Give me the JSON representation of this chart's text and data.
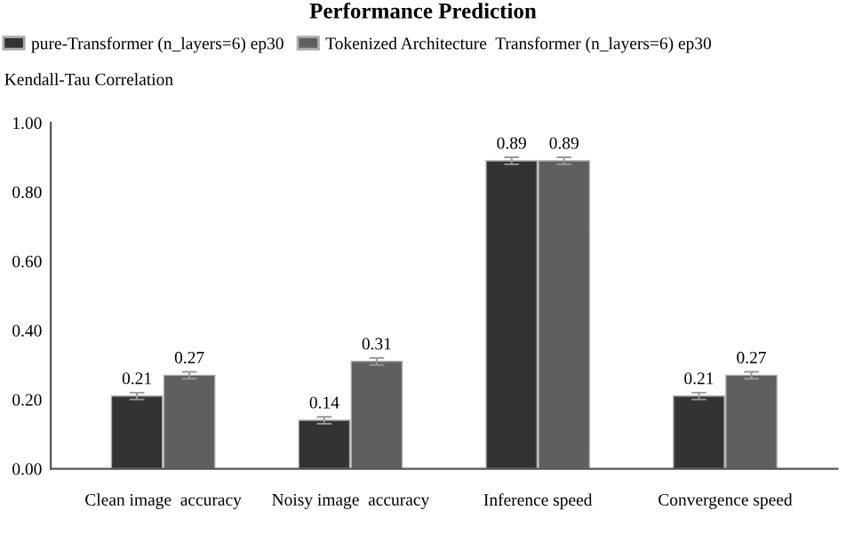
{
  "chart_data": {
    "type": "bar",
    "title": "Performance Prediction",
    "ylabel": "Kendall-Tau Correlation",
    "categories": [
      "Clean image  accuracy",
      "Noisy image  accuracy",
      "Inference speed",
      "Convergence speed"
    ],
    "series": [
      {
        "name": "pure-Transformer (n_layers=6) ep30",
        "color": "#333333",
        "values": [
          0.21,
          0.14,
          0.89,
          0.21
        ],
        "errors": [
          0.01,
          0.01,
          0.01,
          0.01
        ]
      },
      {
        "name": "Tokenized Architecture  Transformer (n_layers=6) ep30",
        "color": "#5f5f5f",
        "values": [
          0.27,
          0.31,
          0.89,
          0.27
        ],
        "errors": [
          0.01,
          0.01,
          0.01,
          0.01
        ]
      }
    ],
    "ylim": [
      0,
      1.0
    ],
    "yticks": [
      {
        "value": 0,
        "label": "0.00"
      },
      {
        "value": 0.2,
        "label": "0.20"
      },
      {
        "value": 0.4,
        "label": "0.40"
      },
      {
        "value": 0.6,
        "label": "0.60"
      },
      {
        "value": 0.8,
        "label": "0.80"
      },
      {
        "value": 1.0,
        "label": "1.00"
      }
    ],
    "data_labels": true,
    "legend": "top left",
    "grid": false
  }
}
